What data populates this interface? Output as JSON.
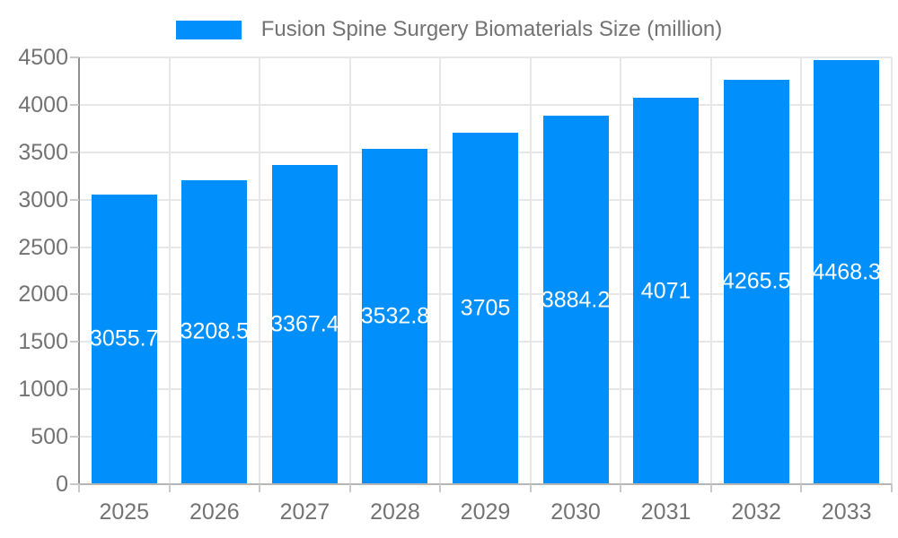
{
  "chart_data": {
    "type": "bar",
    "title": "",
    "xlabel": "",
    "ylabel": "",
    "legend": {
      "position": "top",
      "label": "Fusion Spine Surgery Biomaterials Size (million)"
    },
    "categories": [
      "2025",
      "2026",
      "2027",
      "2028",
      "2029",
      "2030",
      "2031",
      "2032",
      "2033"
    ],
    "series": [
      {
        "name": "Fusion Spine Surgery Biomaterials Size (million)",
        "values": [
          3055.7,
          3208.5,
          3367.4,
          3532.8,
          3705,
          3884.2,
          4071,
          4265.5,
          4468.3
        ]
      }
    ],
    "value_labels": [
      "3055.7",
      "3208.5",
      "3367.4",
      "3532.8",
      "3705",
      "3884.2",
      "4071",
      "4265.5",
      "4468.3"
    ],
    "ylim": [
      0,
      4500
    ],
    "yticks": [
      0,
      500,
      1000,
      1500,
      2000,
      2500,
      3000,
      3500,
      4000,
      4500
    ],
    "grid": true,
    "colors": {
      "bar": "#008FFB",
      "bar_label_text": "#ffffff",
      "grid_line": "#e7e7e7",
      "axis_y_line": "#8f8f8f",
      "axis_x_line": "#b6b6b6",
      "tick_mark": "#c9c9c9",
      "axis_text": "#737373",
      "legend_text": "#737373",
      "background": "#ffffff"
    }
  }
}
